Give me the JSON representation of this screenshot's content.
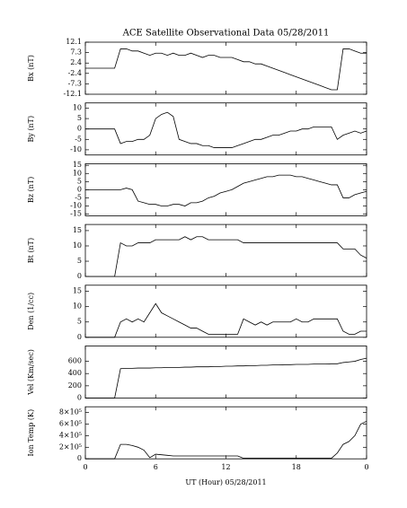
{
  "chart_data": [
    {
      "type": "line",
      "title": "ACE Satellite Observational Data   05/28/2011",
      "ylabel": "Bx (nT)",
      "color": "#000000",
      "x": [
        0,
        0.5,
        1,
        1.5,
        2,
        2.5,
        3,
        3.5,
        4,
        4.5,
        5,
        5.5,
        6,
        6.5,
        7,
        7.5,
        8,
        8.5,
        9,
        9.5,
        10,
        10.5,
        11,
        11.5,
        12,
        12.5,
        13,
        13.5,
        14,
        14.5,
        15,
        15.5,
        16,
        16.5,
        17,
        17.5,
        18,
        18.5,
        19,
        19.5,
        20,
        20.5,
        21,
        21.5,
        22,
        22.5,
        23,
        23.5,
        24
      ],
      "values": [
        0,
        0,
        0,
        0,
        0,
        0,
        9,
        9,
        8,
        8,
        7,
        6,
        7,
        7,
        6,
        7,
        6,
        6,
        7,
        6,
        5,
        6,
        6,
        5,
        5,
        5,
        4,
        3,
        3,
        2,
        2,
        1,
        0,
        -1,
        -2,
        -3,
        -4,
        -5,
        -6,
        -7,
        -8,
        -9,
        -10,
        -10,
        9,
        9,
        8,
        7,
        7
      ],
      "xlim": [
        0,
        24
      ],
      "ylim": [
        -12.1,
        12.1
      ],
      "yticks": [
        12.1,
        7.3,
        2.4,
        -2.4,
        -7.3,
        -12.1
      ]
    },
    {
      "type": "line",
      "ylabel": "By (nT)",
      "color": "#000000",
      "x": [
        0,
        0.5,
        1,
        1.5,
        2,
        2.5,
        3,
        3.5,
        4,
        4.5,
        5,
        5.5,
        6,
        6.5,
        7,
        7.5,
        8,
        8.5,
        9,
        9.5,
        10,
        10.5,
        11,
        11.5,
        12,
        12.5,
        13,
        13.5,
        14,
        14.5,
        15,
        15.5,
        16,
        16.5,
        17,
        17.5,
        18,
        18.5,
        19,
        19.5,
        20,
        20.5,
        21,
        21.5,
        22,
        22.5,
        23,
        23.5,
        24
      ],
      "values": [
        0,
        0,
        0,
        0,
        0,
        0,
        -7,
        -6,
        -6,
        -5,
        -5,
        -3,
        5,
        7,
        8,
        6,
        -5,
        -6,
        -7,
        -7,
        -8,
        -8,
        -9,
        -9,
        -9,
        -9,
        -8,
        -7,
        -6,
        -5,
        -5,
        -4,
        -3,
        -3,
        -2,
        -1,
        -1,
        0,
        0,
        1,
        1,
        1,
        1,
        -5,
        -3,
        -2,
        -1,
        -2,
        -1
      ],
      "xlim": [
        0,
        24
      ],
      "ylim": [
        -12.5,
        12.5
      ],
      "yticks": [
        10,
        5,
        0,
        -5,
        -10
      ]
    },
    {
      "type": "line",
      "ylabel": "Bz (nT)",
      "color": "#000000",
      "x": [
        0,
        0.5,
        1,
        1.5,
        2,
        2.5,
        3,
        3.5,
        4,
        4.5,
        5,
        5.5,
        6,
        6.5,
        7,
        7.5,
        8,
        8.5,
        9,
        9.5,
        10,
        10.5,
        11,
        11.5,
        12,
        12.5,
        13,
        13.5,
        14,
        14.5,
        15,
        15.5,
        16,
        16.5,
        17,
        17.5,
        18,
        18.5,
        19,
        19.5,
        20,
        20.5,
        21,
        21.5,
        22,
        22.5,
        23,
        23.5,
        24
      ],
      "values": [
        0,
        0,
        0,
        0,
        0,
        0,
        0,
        1,
        0,
        -7,
        -8,
        -9,
        -9,
        -10,
        -10,
        -9,
        -9,
        -10,
        -8,
        -8,
        -7,
        -5,
        -4,
        -2,
        -1,
        0,
        2,
        4,
        5,
        6,
        7,
        8,
        8,
        9,
        9,
        9,
        8,
        8,
        7,
        6,
        5,
        4,
        3,
        3,
        -5,
        -5,
        -3,
        -2,
        -1
      ],
      "xlim": [
        0,
        24
      ],
      "ylim": [
        -16,
        16
      ],
      "yticks": [
        15,
        10,
        5,
        0,
        -5,
        -10,
        -15
      ]
    },
    {
      "type": "line",
      "ylabel": "Bt (nT)",
      "color": "#000000",
      "x": [
        0,
        0.5,
        1,
        1.5,
        2,
        2.5,
        3,
        3.5,
        4,
        4.5,
        5,
        5.5,
        6,
        6.5,
        7,
        7.5,
        8,
        8.5,
        9,
        9.5,
        10,
        10.5,
        11,
        11.5,
        12,
        12.5,
        13,
        13.5,
        14,
        14.5,
        15,
        15.5,
        16,
        16.5,
        17,
        17.5,
        18,
        18.5,
        19,
        19.5,
        20,
        20.5,
        21,
        21.5,
        22,
        22.5,
        23,
        23.5,
        24
      ],
      "values": [
        0,
        0,
        0,
        0,
        0,
        0,
        11,
        10,
        10,
        11,
        11,
        11,
        12,
        12,
        12,
        12,
        12,
        13,
        12,
        13,
        13,
        12,
        12,
        12,
        12,
        12,
        12,
        11,
        11,
        11,
        11,
        11,
        11,
        11,
        11,
        11,
        11,
        11,
        11,
        11,
        11,
        11,
        11,
        11,
        9,
        9,
        9,
        7,
        6
      ],
      "xlim": [
        0,
        24
      ],
      "ylim": [
        0,
        17
      ],
      "yticks": [
        15,
        10,
        5,
        0
      ]
    },
    {
      "type": "line",
      "ylabel": "Den (1/cc)",
      "color": "#000000",
      "x": [
        0,
        0.5,
        1,
        1.5,
        2,
        2.5,
        3,
        3.5,
        4,
        4.5,
        5,
        5.5,
        6,
        6.5,
        7,
        7.5,
        8,
        8.5,
        9,
        9.5,
        10,
        10.5,
        11,
        11.5,
        12,
        12.5,
        13,
        13.5,
        14,
        14.5,
        15,
        15.5,
        16,
        16.5,
        17,
        17.5,
        18,
        18.5,
        19,
        19.5,
        20,
        20.5,
        21,
        21.5,
        22,
        22.5,
        23,
        23.5,
        24
      ],
      "values": [
        0,
        0,
        0,
        0,
        0,
        0,
        5,
        6,
        5,
        6,
        5,
        8,
        11,
        8,
        7,
        6,
        5,
        4,
        3,
        3,
        2,
        1,
        1,
        1,
        1,
        1,
        1,
        6,
        5,
        4,
        5,
        4,
        5,
        5,
        5,
        5,
        6,
        5,
        5,
        6,
        6,
        6,
        6,
        6,
        2,
        1,
        1,
        2,
        2
      ],
      "xlim": [
        0,
        24
      ],
      "ylim": [
        0,
        17
      ],
      "yticks": [
        15,
        10,
        5,
        0
      ]
    },
    {
      "type": "line",
      "ylabel": "Vel (Km/sec)",
      "color": "#000000",
      "x": [
        0,
        0.5,
        1,
        1.5,
        2,
        2.5,
        3,
        3.5,
        4,
        4.5,
        5,
        5.5,
        6,
        6.5,
        7,
        7.5,
        8,
        8.5,
        9,
        9.5,
        10,
        10.5,
        11,
        11.5,
        12,
        12.5,
        13,
        13.5,
        14,
        14.5,
        15,
        15.5,
        16,
        16.5,
        17,
        17.5,
        18,
        18.5,
        19,
        19.5,
        20,
        20.5,
        21,
        21.5,
        22,
        22.5,
        23,
        23.5,
        24
      ],
      "values": [
        0,
        0,
        0,
        0,
        0,
        0,
        480,
        485,
        485,
        490,
        490,
        490,
        495,
        495,
        500,
        500,
        500,
        505,
        505,
        510,
        510,
        510,
        515,
        515,
        520,
        520,
        525,
        525,
        530,
        530,
        535,
        535,
        540,
        540,
        545,
        545,
        550,
        550,
        550,
        555,
        555,
        555,
        560,
        560,
        580,
        590,
        600,
        630,
        650
      ],
      "xlim": [
        0,
        24
      ],
      "ylim": [
        0,
        850
      ],
      "yticks": [
        600,
        400,
        200,
        0
      ]
    },
    {
      "type": "line",
      "ylabel": "Ion Temp (K)",
      "xlabel": "UT (Hour)  05/28/2011",
      "color": "#000000",
      "x": [
        0,
        0.5,
        1,
        1.5,
        2,
        2.5,
        3,
        3.5,
        4,
        4.5,
        5,
        5.5,
        6,
        6.5,
        7,
        7.5,
        8,
        8.5,
        9,
        9.5,
        10,
        10.5,
        11,
        11.5,
        12,
        12.5,
        13,
        13.5,
        14,
        14.5,
        15,
        15.5,
        16,
        16.5,
        17,
        17.5,
        18,
        18.5,
        19,
        19.5,
        20,
        20.5,
        21,
        21.5,
        22,
        22.5,
        23,
        23.5,
        24
      ],
      "values": [
        0,
        0,
        0,
        0,
        0,
        0,
        250000,
        250000,
        230000,
        200000,
        150000,
        20000,
        80000,
        70000,
        60000,
        50000,
        50000,
        50000,
        50000,
        50000,
        50000,
        50000,
        50000,
        50000,
        50000,
        50000,
        50000,
        10000,
        10000,
        10000,
        10000,
        10000,
        10000,
        10000,
        10000,
        10000,
        10000,
        10000,
        10000,
        10000,
        10000,
        10000,
        10000,
        100000,
        250000,
        300000,
        400000,
        600000,
        650000
      ],
      "xlim": [
        0,
        24
      ],
      "ylim": [
        0,
        900000
      ],
      "yticks": [
        {
          "value": 800000,
          "label": "8×10⁵"
        },
        {
          "value": 600000,
          "label": "6×10⁵"
        },
        {
          "value": 400000,
          "label": "4×10⁵"
        },
        {
          "value": 200000,
          "label": "2×10⁵"
        },
        0
      ],
      "xticks": [
        0,
        6,
        12,
        18,
        {
          "value": 24,
          "label": "0"
        }
      ]
    }
  ]
}
